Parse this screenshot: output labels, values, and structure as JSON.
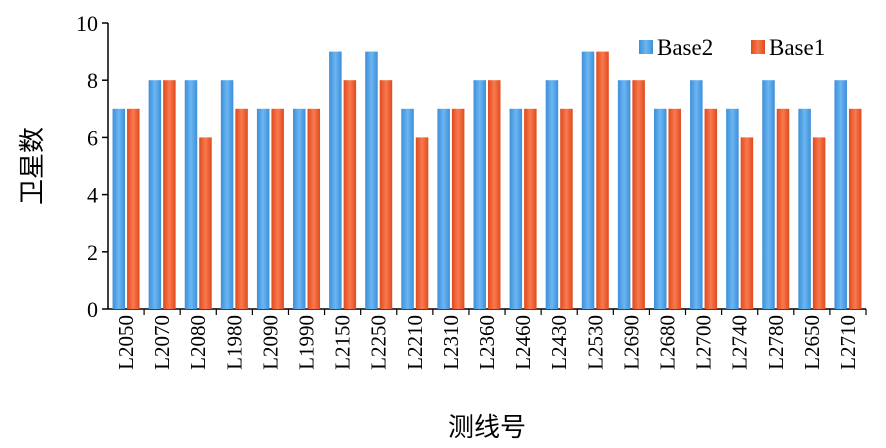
{
  "chart_data": {
    "type": "bar",
    "categories": [
      "L2050",
      "L2070",
      "L2080",
      "L1980",
      "L2090",
      "L1990",
      "L2150",
      "L2250",
      "L2210",
      "L2310",
      "L2360",
      "L2460",
      "L2430",
      "L2530",
      "L2690",
      "L2680",
      "L2700",
      "L2740",
      "L2780",
      "L2650",
      "L2710"
    ],
    "series": [
      {
        "name": "Base2",
        "color": "#4FA3E8",
        "values": [
          7,
          8,
          8,
          8,
          7,
          7,
          9,
          9,
          7,
          7,
          8,
          7,
          8,
          9,
          8,
          7,
          8,
          7,
          8,
          7,
          8
        ]
      },
      {
        "name": "Base1",
        "color": "#F0582A",
        "values": [
          7,
          8,
          6,
          7,
          7,
          7,
          8,
          8,
          6,
          7,
          8,
          7,
          7,
          9,
          8,
          7,
          7,
          6,
          7,
          6,
          7
        ]
      }
    ],
    "xlabel": "测线号",
    "ylabel": "卫星数",
    "ylim": [
      0,
      10
    ],
    "yticks": [
      "0",
      "2",
      "4",
      "6",
      "8",
      "10"
    ],
    "grid": false,
    "legend": "top-right"
  }
}
